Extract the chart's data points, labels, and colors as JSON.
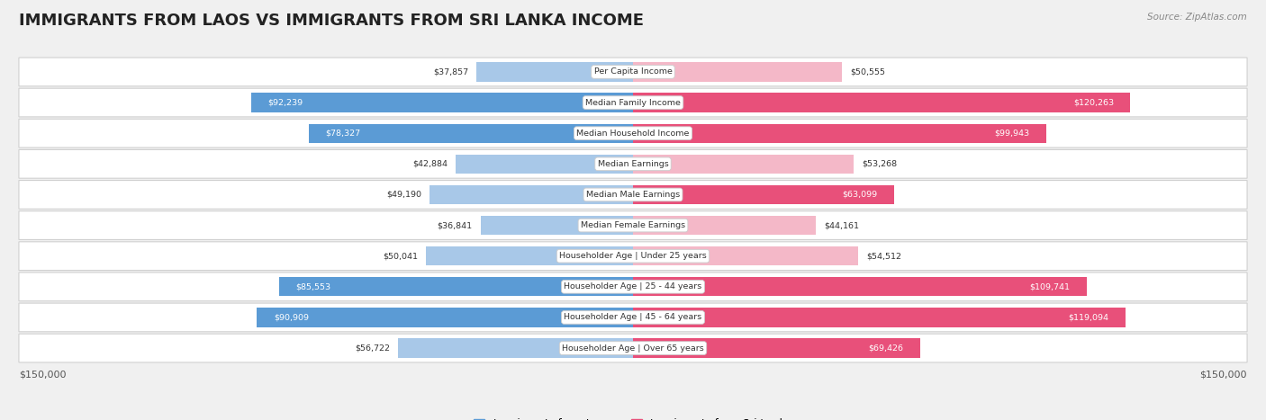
{
  "title": "IMMIGRANTS FROM LAOS VS IMMIGRANTS FROM SRI LANKA INCOME",
  "source": "Source: ZipAtlas.com",
  "categories": [
    "Per Capita Income",
    "Median Family Income",
    "Median Household Income",
    "Median Earnings",
    "Median Male Earnings",
    "Median Female Earnings",
    "Householder Age | Under 25 years",
    "Householder Age | 25 - 44 years",
    "Householder Age | 45 - 64 years",
    "Householder Age | Over 65 years"
  ],
  "laos_values": [
    37857,
    92239,
    78327,
    42884,
    49190,
    36841,
    50041,
    85553,
    90909,
    56722
  ],
  "srilanka_values": [
    50555,
    120263,
    99943,
    53268,
    63099,
    44161,
    54512,
    109741,
    119094,
    69426
  ],
  "laos_labels": [
    "$37,857",
    "$92,239",
    "$78,327",
    "$42,884",
    "$49,190",
    "$36,841",
    "$50,041",
    "$85,553",
    "$90,909",
    "$56,722"
  ],
  "srilanka_labels": [
    "$50,555",
    "$120,263",
    "$99,943",
    "$53,268",
    "$63,099",
    "$44,161",
    "$54,512",
    "$109,741",
    "$119,094",
    "$69,426"
  ],
  "laos_color_light": "#a8c8e8",
  "laos_color_dark": "#5b9bd5",
  "srilanka_color_light": "#f4b8c8",
  "srilanka_color_dark": "#e8507a",
  "max_value": 150000,
  "background_color": "#f0f0f0",
  "title_fontsize": 13,
  "axis_label": "$150,000",
  "legend_laos": "Immigrants from Laos",
  "legend_srilanka": "Immigrants from Sri Lanka",
  "inside_threshold": 60000
}
